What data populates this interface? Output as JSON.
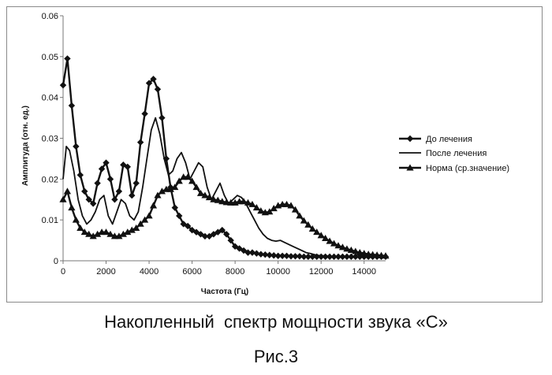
{
  "caption": "Накопленный  спектр мощности звука «С»",
  "figure_label": "Рис.3",
  "chart_data": {
    "type": "line",
    "title": "",
    "xlabel": "Частота (Гц)",
    "ylabel": "Амплитуда (отн. ед.)",
    "xlim": [
      0,
      15000
    ],
    "ylim": [
      0,
      0.06
    ],
    "xticks": [
      0,
      2000,
      4000,
      6000,
      8000,
      10000,
      12000,
      14000
    ],
    "yticks": [
      0,
      0.01,
      0.02,
      0.03,
      0.04,
      0.05,
      0.06
    ],
    "grid": false,
    "legend_position": "right",
    "series": [
      {
        "name": "До лечения",
        "marker": "diamond",
        "color": "#111111",
        "x": [
          0,
          200,
          400,
          600,
          800,
          1000,
          1200,
          1400,
          1600,
          1800,
          2000,
          2200,
          2400,
          2600,
          2800,
          3000,
          3200,
          3400,
          3600,
          3800,
          4000,
          4200,
          4400,
          4600,
          4800,
          5000,
          5200,
          5400,
          5600,
          5800,
          6000,
          6200,
          6400,
          6600,
          6800,
          7000,
          7200,
          7400,
          7600,
          7800,
          8000,
          8200,
          8400,
          8600,
          8800,
          9000,
          9200,
          9400,
          9600,
          9800,
          10000,
          10200,
          10400,
          10600,
          10800,
          11000,
          11200,
          11400,
          11600,
          11800,
          12000,
          12200,
          12400,
          12600,
          12800,
          13000,
          13200,
          13400,
          13600,
          13800,
          14000,
          14200,
          14400,
          14600,
          14800,
          15000
        ],
        "y": [
          0.043,
          0.0495,
          0.038,
          0.028,
          0.021,
          0.017,
          0.015,
          0.014,
          0.019,
          0.0225,
          0.024,
          0.02,
          0.015,
          0.017,
          0.0235,
          0.023,
          0.016,
          0.019,
          0.029,
          0.036,
          0.0435,
          0.0445,
          0.042,
          0.035,
          0.025,
          0.018,
          0.013,
          0.011,
          0.009,
          0.0085,
          0.0075,
          0.007,
          0.0065,
          0.006,
          0.006,
          0.0065,
          0.007,
          0.0075,
          0.0065,
          0.005,
          0.0035,
          0.003,
          0.0025,
          0.002,
          0.002,
          0.0018,
          0.0016,
          0.0015,
          0.0014,
          0.0013,
          0.0012,
          0.0012,
          0.0012,
          0.0011,
          0.0011,
          0.0011,
          0.001,
          0.001,
          0.001,
          0.001,
          0.001,
          0.001,
          0.001,
          0.001,
          0.001,
          0.001,
          0.001,
          0.001,
          0.001,
          0.001,
          0.001,
          0.001,
          0.001,
          0.001,
          0.001,
          0.001
        ]
      },
      {
        "name": "После лечения",
        "marker": "none",
        "color": "#111111",
        "x": [
          0,
          150,
          300,
          500,
          700,
          900,
          1100,
          1300,
          1500,
          1700,
          1900,
          2100,
          2300,
          2500,
          2700,
          2900,
          3100,
          3300,
          3500,
          3700,
          3900,
          4100,
          4300,
          4500,
          4700,
          4900,
          5100,
          5300,
          5500,
          5700,
          5900,
          6100,
          6300,
          6500,
          6700,
          6900,
          7100,
          7300,
          7500,
          7700,
          7900,
          8100,
          8300,
          8500,
          8700,
          8900,
          9100,
          9300,
          9500,
          9700,
          9900,
          10100,
          10300,
          10500,
          10700,
          10900,
          11100,
          11300,
          11500,
          11700,
          11900,
          12200,
          12600,
          13000,
          13400,
          13800,
          14200,
          14600,
          15000
        ],
        "y": [
          0.02,
          0.028,
          0.027,
          0.022,
          0.015,
          0.011,
          0.009,
          0.01,
          0.012,
          0.015,
          0.016,
          0.011,
          0.009,
          0.012,
          0.015,
          0.014,
          0.011,
          0.01,
          0.012,
          0.018,
          0.025,
          0.032,
          0.035,
          0.031,
          0.025,
          0.021,
          0.022,
          0.025,
          0.0265,
          0.024,
          0.02,
          0.022,
          0.024,
          0.023,
          0.018,
          0.015,
          0.017,
          0.019,
          0.016,
          0.014,
          0.015,
          0.016,
          0.0155,
          0.014,
          0.012,
          0.01,
          0.008,
          0.0065,
          0.0055,
          0.005,
          0.0048,
          0.005,
          0.0045,
          0.004,
          0.0035,
          0.003,
          0.0025,
          0.002,
          0.0018,
          0.0015,
          0.0013,
          0.0012,
          0.001,
          0.001,
          0.001,
          0.001,
          0.001,
          0.001,
          0.001
        ]
      },
      {
        "name": "Норма (ср.значение)",
        "marker": "triangle",
        "color": "#111111",
        "x": [
          0,
          200,
          400,
          600,
          800,
          1000,
          1200,
          1400,
          1600,
          1800,
          2000,
          2200,
          2400,
          2600,
          2800,
          3000,
          3200,
          3400,
          3600,
          3800,
          4000,
          4200,
          4400,
          4600,
          4800,
          5000,
          5200,
          5400,
          5600,
          5800,
          6000,
          6200,
          6400,
          6600,
          6800,
          7000,
          7200,
          7400,
          7600,
          7800,
          8000,
          8200,
          8400,
          8600,
          8800,
          9000,
          9200,
          9400,
          9600,
          9800,
          10000,
          10200,
          10400,
          10600,
          10800,
          11000,
          11200,
          11400,
          11600,
          11800,
          12000,
          12200,
          12400,
          12600,
          12800,
          13000,
          13200,
          13400,
          13600,
          13800,
          14000,
          14200,
          14400,
          14600,
          14800,
          15000
        ],
        "y": [
          0.015,
          0.017,
          0.013,
          0.01,
          0.008,
          0.007,
          0.0065,
          0.006,
          0.0065,
          0.007,
          0.007,
          0.0065,
          0.006,
          0.006,
          0.0065,
          0.007,
          0.0075,
          0.008,
          0.009,
          0.01,
          0.011,
          0.0135,
          0.016,
          0.017,
          0.0175,
          0.0175,
          0.018,
          0.0195,
          0.0205,
          0.0205,
          0.0195,
          0.018,
          0.0165,
          0.016,
          0.0155,
          0.015,
          0.0148,
          0.0145,
          0.0143,
          0.0142,
          0.0142,
          0.0145,
          0.0145,
          0.0142,
          0.0138,
          0.013,
          0.0122,
          0.0118,
          0.012,
          0.0128,
          0.0135,
          0.0138,
          0.0138,
          0.0135,
          0.0125,
          0.011,
          0.0098,
          0.0088,
          0.0078,
          0.007,
          0.0062,
          0.0055,
          0.0048,
          0.0042,
          0.0037,
          0.0033,
          0.0029,
          0.0026,
          0.0023,
          0.002,
          0.0018,
          0.0016,
          0.0015,
          0.0014,
          0.0013,
          0.0012
        ]
      }
    ]
  }
}
